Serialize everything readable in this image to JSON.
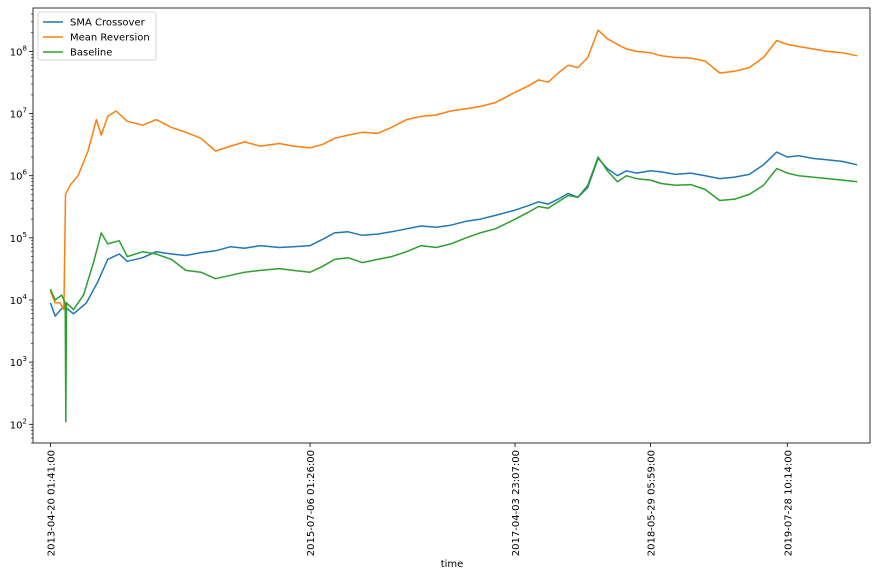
{
  "chart_data": {
    "type": "line",
    "title": "",
    "xlabel": "time",
    "ylabel": "",
    "yscale": "log",
    "ylim": [
      50,
      500000000
    ],
    "grid": false,
    "legend_position": "top-left",
    "x_ticks": [
      {
        "label": "2013-04-20 01:41:00",
        "date": "2013-04-20"
      },
      {
        "label": "2015-07-06 01:26:00",
        "date": "2015-07-06"
      },
      {
        "label": "2017-04-03 23:07:00",
        "date": "2017-04-03"
      },
      {
        "label": "2018-05-29 05:59:00",
        "date": "2018-05-29"
      },
      {
        "label": "2019-07-28 10:14:00",
        "date": "2019-07-28"
      }
    ],
    "y_ticks": [
      {
        "value": 100,
        "base": "10",
        "exp": "2"
      },
      {
        "value": 1000,
        "base": "10",
        "exp": "3"
      },
      {
        "value": 10000,
        "base": "10",
        "exp": "4"
      },
      {
        "value": 100000,
        "base": "10",
        "exp": "5"
      },
      {
        "value": 1000000,
        "base": "10",
        "exp": "6"
      },
      {
        "value": 10000000,
        "base": "10",
        "exp": "7"
      },
      {
        "value": 100000000,
        "base": "10",
        "exp": "8"
      }
    ],
    "series": [
      {
        "name": "SMA Crossover",
        "color": "#1f77b4",
        "points": [
          [
            "2013-04-20",
            9000
          ],
          [
            "2013-05-05",
            5500
          ],
          [
            "2013-06-01",
            8000
          ],
          [
            "2013-07-01",
            6000
          ],
          [
            "2013-08-10",
            9000
          ],
          [
            "2013-09-15",
            20000
          ],
          [
            "2013-10-15",
            45000
          ],
          [
            "2013-11-20",
            55000
          ],
          [
            "2013-12-15",
            42000
          ],
          [
            "2014-02-01",
            48000
          ],
          [
            "2014-03-15",
            60000
          ],
          [
            "2014-05-01",
            55000
          ],
          [
            "2014-06-15",
            52000
          ],
          [
            "2014-08-01",
            58000
          ],
          [
            "2014-09-15",
            62000
          ],
          [
            "2014-11-01",
            72000
          ],
          [
            "2014-12-15",
            68000
          ],
          [
            "2015-02-01",
            75000
          ],
          [
            "2015-04-01",
            70000
          ],
          [
            "2015-05-15",
            72000
          ],
          [
            "2015-07-06",
            75000
          ],
          [
            "2015-08-15",
            95000
          ],
          [
            "2015-09-20",
            120000
          ],
          [
            "2015-11-01",
            125000
          ],
          [
            "2015-12-15",
            110000
          ],
          [
            "2016-02-01",
            115000
          ],
          [
            "2016-03-15",
            125000
          ],
          [
            "2016-05-01",
            140000
          ],
          [
            "2016-06-15",
            155000
          ],
          [
            "2016-08-01",
            148000
          ],
          [
            "2016-09-15",
            160000
          ],
          [
            "2016-11-01",
            185000
          ],
          [
            "2016-12-15",
            200000
          ],
          [
            "2017-02-01",
            230000
          ],
          [
            "2017-04-03",
            280000
          ],
          [
            "2017-05-15",
            330000
          ],
          [
            "2017-06-15",
            380000
          ],
          [
            "2017-07-15",
            350000
          ],
          [
            "2017-08-15",
            420000
          ],
          [
            "2017-09-15",
            520000
          ],
          [
            "2017-10-15",
            450000
          ],
          [
            "2017-11-15",
            650000
          ],
          [
            "2017-12-17",
            1900000
          ],
          [
            "2018-01-15",
            1300000
          ],
          [
            "2018-02-15",
            1000000
          ],
          [
            "2018-03-15",
            1200000
          ],
          [
            "2018-04-15",
            1100000
          ],
          [
            "2018-05-29",
            1200000
          ],
          [
            "2018-07-01",
            1150000
          ],
          [
            "2018-08-15",
            1050000
          ],
          [
            "2018-10-01",
            1100000
          ],
          [
            "2018-11-15",
            1000000
          ],
          [
            "2018-12-30",
            900000
          ],
          [
            "2019-02-15",
            950000
          ],
          [
            "2019-04-01",
            1050000
          ],
          [
            "2019-05-15",
            1500000
          ],
          [
            "2019-06-25",
            2400000
          ],
          [
            "2019-07-28",
            2000000
          ],
          [
            "2019-09-01",
            2100000
          ],
          [
            "2019-10-15",
            1900000
          ],
          [
            "2019-12-01",
            1800000
          ],
          [
            "2020-01-15",
            1700000
          ],
          [
            "2020-03-01",
            1500000
          ]
        ]
      },
      {
        "name": "Mean Reversion",
        "color": "#ff7f0e",
        "points": [
          [
            "2013-04-20",
            14000
          ],
          [
            "2013-05-05",
            9000
          ],
          [
            "2013-05-20",
            9000
          ],
          [
            "2013-06-01",
            7000
          ],
          [
            "2013-06-06",
            500000
          ],
          [
            "2013-06-20",
            700000
          ],
          [
            "2013-07-15",
            1000000
          ],
          [
            "2013-08-15",
            2500000
          ],
          [
            "2013-09-10",
            8000000
          ],
          [
            "2013-09-25",
            4500000
          ],
          [
            "2013-10-15",
            9000000
          ],
          [
            "2013-11-10",
            11000000
          ],
          [
            "2013-12-15",
            7500000
          ],
          [
            "2014-02-01",
            6500000
          ],
          [
            "2014-03-15",
            8000000
          ],
          [
            "2014-05-01",
            6000000
          ],
          [
            "2014-06-15",
            5000000
          ],
          [
            "2014-08-01",
            4000000
          ],
          [
            "2014-09-15",
            2500000
          ],
          [
            "2014-11-01",
            3000000
          ],
          [
            "2014-12-15",
            3500000
          ],
          [
            "2015-02-01",
            3000000
          ],
          [
            "2015-04-01",
            3300000
          ],
          [
            "2015-05-15",
            3000000
          ],
          [
            "2015-07-06",
            2800000
          ],
          [
            "2015-08-15",
            3200000
          ],
          [
            "2015-09-20",
            4000000
          ],
          [
            "2015-11-01",
            4500000
          ],
          [
            "2015-12-15",
            5000000
          ],
          [
            "2016-02-01",
            4800000
          ],
          [
            "2016-03-15",
            6000000
          ],
          [
            "2016-05-01",
            8000000
          ],
          [
            "2016-06-15",
            9000000
          ],
          [
            "2016-08-01",
            9500000
          ],
          [
            "2016-09-15",
            11000000
          ],
          [
            "2016-11-01",
            12000000
          ],
          [
            "2016-12-15",
            13000000
          ],
          [
            "2017-02-01",
            15000000
          ],
          [
            "2017-04-03",
            22000000
          ],
          [
            "2017-05-15",
            28000000
          ],
          [
            "2017-06-15",
            35000000
          ],
          [
            "2017-07-15",
            32000000
          ],
          [
            "2017-08-15",
            45000000
          ],
          [
            "2017-09-15",
            60000000
          ],
          [
            "2017-10-15",
            55000000
          ],
          [
            "2017-11-15",
            80000000
          ],
          [
            "2017-12-17",
            220000000
          ],
          [
            "2018-01-15",
            160000000
          ],
          [
            "2018-02-15",
            130000000
          ],
          [
            "2018-03-15",
            110000000
          ],
          [
            "2018-04-15",
            100000000
          ],
          [
            "2018-05-29",
            95000000
          ],
          [
            "2018-07-01",
            85000000
          ],
          [
            "2018-08-15",
            80000000
          ],
          [
            "2018-10-01",
            78000000
          ],
          [
            "2018-11-15",
            70000000
          ],
          [
            "2018-12-30",
            45000000
          ],
          [
            "2019-02-15",
            48000000
          ],
          [
            "2019-04-01",
            55000000
          ],
          [
            "2019-05-15",
            80000000
          ],
          [
            "2019-06-25",
            150000000
          ],
          [
            "2019-07-28",
            130000000
          ],
          [
            "2019-09-01",
            120000000
          ],
          [
            "2019-10-15",
            110000000
          ],
          [
            "2019-12-01",
            100000000
          ],
          [
            "2020-01-15",
            95000000
          ],
          [
            "2020-03-01",
            85000000
          ]
        ]
      },
      {
        "name": "Baseline",
        "color": "#2ca02c",
        "points": [
          [
            "2013-04-20",
            15000
          ],
          [
            "2013-05-05",
            10000
          ],
          [
            "2013-05-25",
            12000
          ],
          [
            "2013-06-05",
            9000
          ],
          [
            "2013-06-07",
            110
          ],
          [
            "2013-06-09",
            9000
          ],
          [
            "2013-07-01",
            7000
          ],
          [
            "2013-08-01",
            12000
          ],
          [
            "2013-09-01",
            40000
          ],
          [
            "2013-09-25",
            120000
          ],
          [
            "2013-10-15",
            80000
          ],
          [
            "2013-11-20",
            90000
          ],
          [
            "2013-12-15",
            50000
          ],
          [
            "2014-02-01",
            60000
          ],
          [
            "2014-03-15",
            55000
          ],
          [
            "2014-05-01",
            45000
          ],
          [
            "2014-06-15",
            30000
          ],
          [
            "2014-08-01",
            28000
          ],
          [
            "2014-09-15",
            22000
          ],
          [
            "2014-11-01",
            25000
          ],
          [
            "2014-12-15",
            28000
          ],
          [
            "2015-02-01",
            30000
          ],
          [
            "2015-04-01",
            32000
          ],
          [
            "2015-05-15",
            30000
          ],
          [
            "2015-07-06",
            28000
          ],
          [
            "2015-08-15",
            35000
          ],
          [
            "2015-09-20",
            45000
          ],
          [
            "2015-11-01",
            48000
          ],
          [
            "2015-12-15",
            40000
          ],
          [
            "2016-02-01",
            45000
          ],
          [
            "2016-03-15",
            50000
          ],
          [
            "2016-05-01",
            60000
          ],
          [
            "2016-06-15",
            75000
          ],
          [
            "2016-08-01",
            70000
          ],
          [
            "2016-09-15",
            80000
          ],
          [
            "2016-11-01",
            100000
          ],
          [
            "2016-12-15",
            120000
          ],
          [
            "2017-02-01",
            140000
          ],
          [
            "2017-04-03",
            200000
          ],
          [
            "2017-05-15",
            260000
          ],
          [
            "2017-06-15",
            320000
          ],
          [
            "2017-07-15",
            300000
          ],
          [
            "2017-08-15",
            380000
          ],
          [
            "2017-09-15",
            480000
          ],
          [
            "2017-10-15",
            450000
          ],
          [
            "2017-11-15",
            700000
          ],
          [
            "2017-12-17",
            2000000
          ],
          [
            "2018-01-15",
            1200000
          ],
          [
            "2018-02-15",
            800000
          ],
          [
            "2018-03-15",
            1000000
          ],
          [
            "2018-04-15",
            900000
          ],
          [
            "2018-05-29",
            850000
          ],
          [
            "2018-07-01",
            750000
          ],
          [
            "2018-08-15",
            700000
          ],
          [
            "2018-10-01",
            720000
          ],
          [
            "2018-11-15",
            600000
          ],
          [
            "2018-12-30",
            400000
          ],
          [
            "2019-02-15",
            420000
          ],
          [
            "2019-04-01",
            500000
          ],
          [
            "2019-05-15",
            700000
          ],
          [
            "2019-06-25",
            1300000
          ],
          [
            "2019-07-28",
            1100000
          ],
          [
            "2019-09-01",
            1000000
          ],
          [
            "2019-10-15",
            950000
          ],
          [
            "2019-12-01",
            900000
          ],
          [
            "2020-01-15",
            850000
          ],
          [
            "2020-03-01",
            800000
          ]
        ]
      }
    ]
  }
}
